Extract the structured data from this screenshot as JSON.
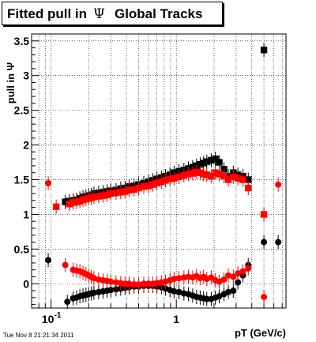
{
  "title_main": "Fitted pull in",
  "title_symbol": "Ψ",
  "title_tail": "Global Tracks",
  "timestamp": "Tue Nov  8 21:21:34 2011",
  "chart_data": {
    "type": "scatter",
    "title": "Fitted pull in Ψ Global Tracks",
    "xlabel": "pT (GeV/c)",
    "ylabel": "pull in Ψ",
    "xscale": "log",
    "xlim": [
      0.07,
      7.5
    ],
    "ylim": [
      -0.35,
      3.6
    ],
    "grid": true,
    "x_tick_labels": [
      {
        "value": 0.1,
        "label": "10",
        "sup": "-1"
      },
      {
        "value": 1,
        "label": "1",
        "sup": ""
      }
    ],
    "y_tick_labels": [
      "0",
      "0.5",
      "1",
      "1.5",
      "2",
      "2.5",
      "3",
      "3.5"
    ],
    "series": [
      {
        "marker": "square",
        "color": "#000000",
        "x": [
          0.13,
          0.14,
          0.15,
          0.16,
          0.17,
          0.18,
          0.19,
          0.2,
          0.21,
          0.22,
          0.24,
          0.26,
          0.28,
          0.3,
          0.33,
          0.36,
          0.39,
          0.42,
          0.46,
          0.5,
          0.55,
          0.6,
          0.65,
          0.7,
          0.76,
          0.82,
          0.89,
          0.96,
          1.05,
          1.15,
          1.25,
          1.35,
          1.45,
          1.55,
          1.65,
          1.75,
          1.9,
          2.05,
          2.2,
          2.4,
          2.6,
          2.85,
          3.1,
          3.4,
          3.75,
          5.0
        ],
        "y": [
          1.18,
          1.19,
          1.2,
          1.21,
          1.23,
          1.25,
          1.26,
          1.27,
          1.28,
          1.3,
          1.31,
          1.32,
          1.33,
          1.34,
          1.35,
          1.37,
          1.38,
          1.4,
          1.41,
          1.43,
          1.45,
          1.47,
          1.49,
          1.51,
          1.53,
          1.55,
          1.57,
          1.6,
          1.62,
          1.64,
          1.66,
          1.68,
          1.7,
          1.72,
          1.74,
          1.76,
          1.78,
          1.8,
          1.75,
          1.65,
          1.55,
          1.6,
          1.57,
          1.55,
          1.5,
          3.37
        ]
      },
      {
        "marker": "circle",
        "color": "#000000",
        "x": [
          0.095,
          0.135,
          0.15,
          0.16,
          0.17,
          0.18,
          0.19,
          0.2,
          0.21,
          0.22,
          0.24,
          0.26,
          0.28,
          0.3,
          0.33,
          0.36,
          0.39,
          0.42,
          0.46,
          0.5,
          0.55,
          0.6,
          0.65,
          0.7,
          0.76,
          0.82,
          0.89,
          0.96,
          1.05,
          1.15,
          1.25,
          1.35,
          1.45,
          1.55,
          1.65,
          1.75,
          1.9,
          2.05,
          2.2,
          2.4,
          2.6,
          2.85,
          3.1,
          3.4,
          3.75,
          5.0,
          6.5
        ],
        "y": [
          0.34,
          -0.26,
          -0.21,
          -0.2,
          -0.18,
          -0.17,
          -0.16,
          -0.15,
          -0.14,
          -0.13,
          -0.12,
          -0.11,
          -0.1,
          -0.09,
          -0.08,
          -0.07,
          -0.06,
          -0.05,
          -0.04,
          -0.04,
          -0.03,
          -0.03,
          -0.03,
          -0.04,
          -0.05,
          -0.07,
          -0.09,
          -0.11,
          -0.12,
          -0.14,
          -0.15,
          -0.17,
          -0.19,
          -0.2,
          -0.21,
          -0.22,
          -0.22,
          -0.2,
          -0.18,
          -0.15,
          -0.12,
          -0.1,
          0.02,
          0.12,
          0.27,
          0.6,
          0.6
        ]
      },
      {
        "marker": "square",
        "color": "#ff0000",
        "x": [
          0.11,
          0.14,
          0.15,
          0.16,
          0.17,
          0.18,
          0.19,
          0.2,
          0.21,
          0.22,
          0.24,
          0.26,
          0.28,
          0.3,
          0.33,
          0.36,
          0.39,
          0.42,
          0.46,
          0.5,
          0.55,
          0.6,
          0.65,
          0.7,
          0.76,
          0.82,
          0.89,
          0.96,
          1.05,
          1.15,
          1.25,
          1.35,
          1.45,
          1.55,
          1.65,
          1.75,
          1.9,
          2.05,
          2.2,
          2.4,
          2.6,
          2.85,
          3.1,
          3.4,
          3.75,
          5.0
        ],
        "y": [
          1.11,
          1.15,
          1.17,
          1.18,
          1.19,
          1.21,
          1.22,
          1.23,
          1.24,
          1.25,
          1.26,
          1.27,
          1.28,
          1.3,
          1.31,
          1.32,
          1.33,
          1.35,
          1.36,
          1.38,
          1.4,
          1.41,
          1.43,
          1.45,
          1.47,
          1.49,
          1.51,
          1.52,
          1.54,
          1.56,
          1.58,
          1.59,
          1.61,
          1.6,
          1.58,
          1.57,
          1.55,
          1.6,
          1.58,
          1.55,
          1.5,
          1.54,
          1.52,
          1.5,
          1.38,
          1.0
        ]
      },
      {
        "marker": "circle",
        "color": "#ff0000",
        "x": [
          0.095,
          0.13,
          0.15,
          0.16,
          0.17,
          0.18,
          0.19,
          0.2,
          0.21,
          0.22,
          0.24,
          0.26,
          0.28,
          0.3,
          0.33,
          0.36,
          0.39,
          0.42,
          0.46,
          0.5,
          0.55,
          0.6,
          0.65,
          0.7,
          0.76,
          0.82,
          0.89,
          0.96,
          1.05,
          1.15,
          1.25,
          1.35,
          1.45,
          1.55,
          1.65,
          1.75,
          1.9,
          2.05,
          2.2,
          2.4,
          2.6,
          2.85,
          3.1,
          3.4,
          3.75,
          5.0,
          6.5
        ],
        "y": [
          1.45,
          0.27,
          0.2,
          0.19,
          0.18,
          0.16,
          0.14,
          0.12,
          0.1,
          0.08,
          0.06,
          0.05,
          0.04,
          0.03,
          0.02,
          0.01,
          0.0,
          0.0,
          -0.01,
          -0.01,
          0.0,
          0.0,
          0.0,
          0.01,
          0.02,
          0.03,
          0.05,
          0.07,
          0.08,
          0.09,
          0.1,
          0.09,
          0.11,
          0.08,
          0.1,
          0.07,
          0.09,
          0.05,
          0.03,
          0.06,
          0.12,
          0.1,
          0.15,
          0.18,
          0.22,
          -0.19,
          1.43
        ]
      }
    ]
  }
}
